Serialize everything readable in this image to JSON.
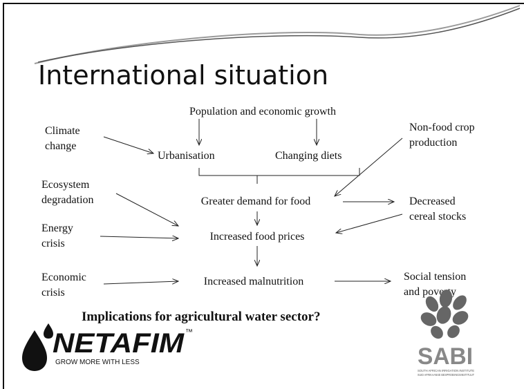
{
  "title": "International situation",
  "nodes": [
    {
      "lines": [
        "Population and economic growth"
      ]
    },
    {
      "lines": [
        "Climate",
        "change"
      ]
    },
    {
      "lines": [
        "Urbanisation"
      ]
    },
    {
      "lines": [
        "Changing diets"
      ]
    },
    {
      "lines": [
        "Non-food crop",
        "production"
      ]
    },
    {
      "lines": [
        "Ecosystem",
        "degradation"
      ]
    },
    {
      "lines": [
        "Greater demand for food"
      ]
    },
    {
      "lines": [
        "Decreased",
        "cereal stocks"
      ]
    },
    {
      "lines": [
        "Energy",
        "crisis"
      ]
    },
    {
      "lines": [
        "Increased food prices"
      ]
    },
    {
      "lines": [
        "Economic",
        "crisis"
      ]
    },
    {
      "lines": [
        "Increased malnutrition"
      ]
    },
    {
      "lines": [
        "Social tension",
        "and poverty"
      ]
    }
  ],
  "question": "Implications for agricultural water  sector?",
  "logos": {
    "netafim": {
      "name": "NETAFIM",
      "tm": "™",
      "slogan": "GROW MORE WITH LESS"
    },
    "sabi": {
      "name": "SABI",
      "line1": "SOUTH AFRICAN IRRIGATION INSTITUTE",
      "line2": "SUID AFRIKAANSE BESPROEIINGSINSTITUUT"
    }
  }
}
